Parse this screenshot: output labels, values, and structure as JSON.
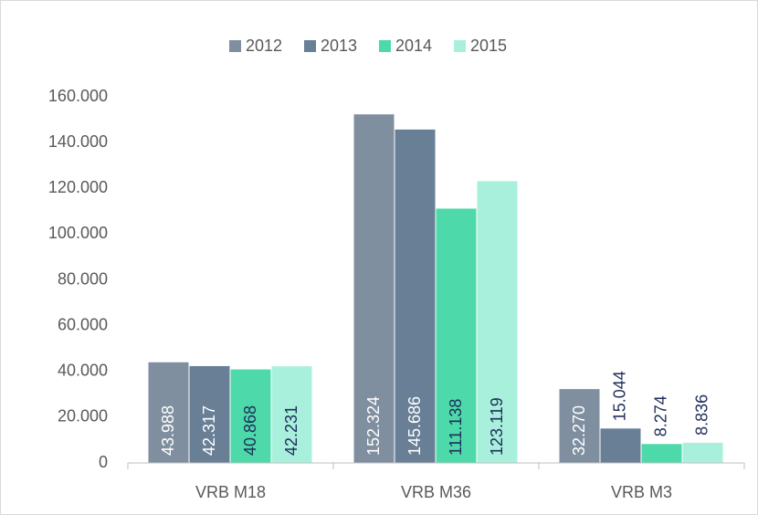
{
  "chart_data": {
    "type": "bar",
    "categories": [
      "VRB M18",
      "VRB M36",
      "VRB M3"
    ],
    "series": [
      {
        "name": "2012",
        "color": "#7f8fa0",
        "label_color": "#ffffff",
        "values": [
          43988,
          152324,
          32270
        ],
        "value_labels": [
          "43.988",
          "152.324",
          "32.270"
        ]
      },
      {
        "name": "2013",
        "color": "#687f96",
        "label_color": "#ffffff",
        "values": [
          42317,
          145686,
          15044
        ],
        "value_labels": [
          "42.317",
          "145.686",
          "15.044"
        ]
      },
      {
        "name": "2014",
        "color": "#4dd9a9",
        "label_color": "#1f2d5a",
        "values": [
          40868,
          111138,
          8274
        ],
        "value_labels": [
          "40.868",
          "111.138",
          "8.274"
        ]
      },
      {
        "name": "2015",
        "color": "#a8f0dc",
        "label_color": "#1f2d5a",
        "values": [
          42231,
          123119,
          8836
        ],
        "value_labels": [
          "42.231",
          "123.119",
          "8.836"
        ]
      }
    ],
    "outside_label_color": "#1f2d5a",
    "ylim": [
      0,
      160000
    ],
    "yticks": [
      0,
      {
        "value": 20000,
        "label": "20.000"
      },
      {
        "value": 40000,
        "label": "40.000"
      },
      {
        "value": 60000,
        "label": "60.000"
      },
      {
        "value": 80000,
        "label": "80.000"
      },
      {
        "value": 100000,
        "label": "100.000"
      },
      {
        "value": 120000,
        "label": "120.000"
      },
      {
        "value": 140000,
        "label": "140.000"
      },
      {
        "value": 160000,
        "label": "160.000"
      }
    ],
    "grid": false,
    "legend": "top"
  }
}
